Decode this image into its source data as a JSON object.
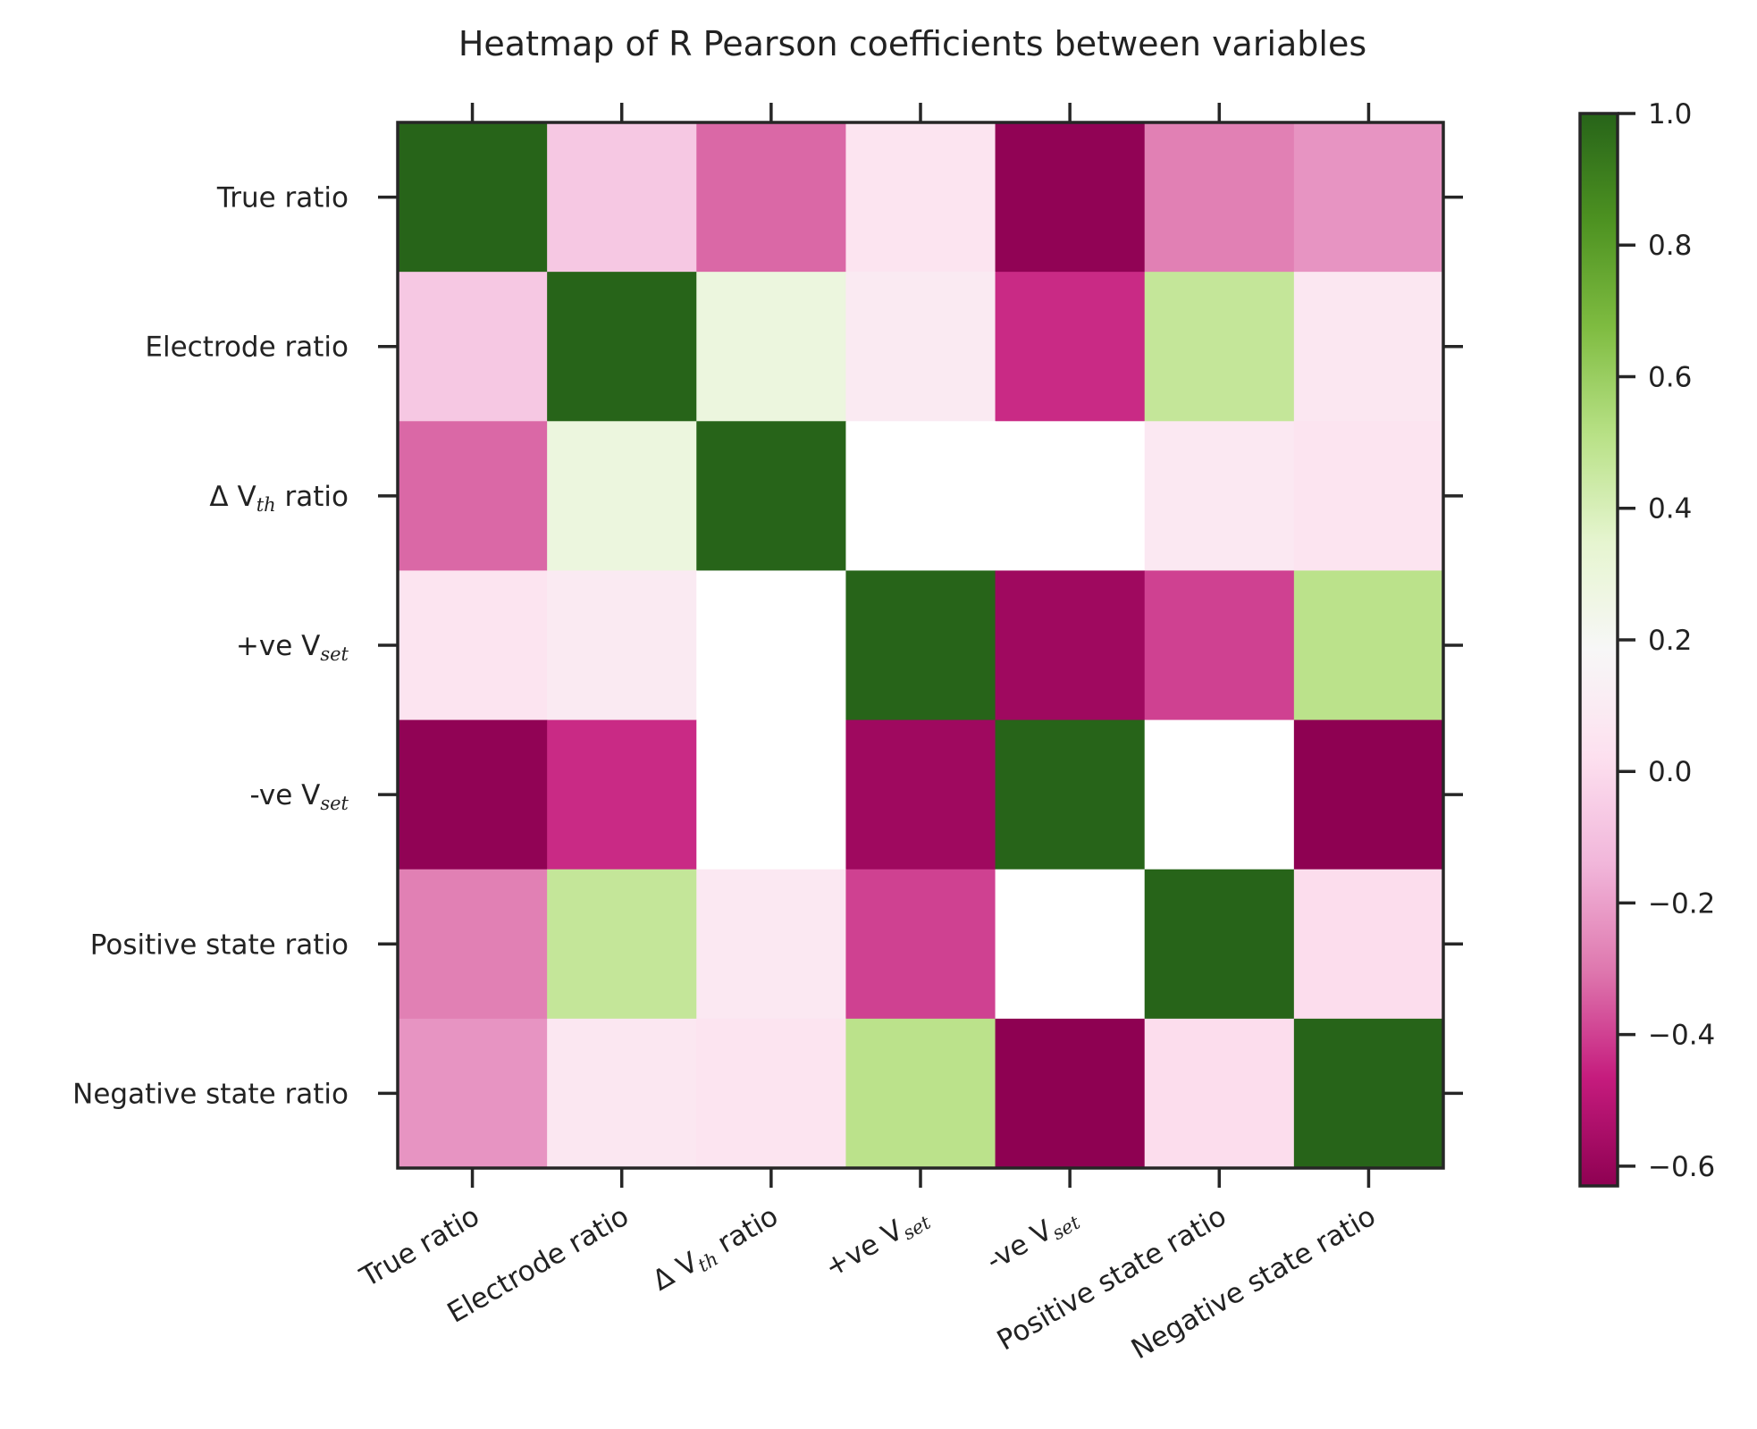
{
  "chart_data": {
    "type": "heatmap",
    "title": "Heatmap of R Pearson coefficients between variables",
    "labels": [
      {
        "id": "true_ratio",
        "main": "True ratio",
        "sub": "",
        "suffix": ""
      },
      {
        "id": "electrode_ratio",
        "main": "Electrode ratio",
        "sub": "",
        "suffix": ""
      },
      {
        "id": "delta_vth_ratio",
        "main": "Δ V",
        "sub": "th",
        "suffix": " ratio"
      },
      {
        "id": "pos_vset",
        "main": "+ve V",
        "sub": "set",
        "suffix": ""
      },
      {
        "id": "neg_vset",
        "main": "-ve V",
        "sub": "set",
        "suffix": ""
      },
      {
        "id": "positive_state_ratio",
        "main": "Positive state ratio",
        "sub": "",
        "suffix": ""
      },
      {
        "id": "negative_state_ratio",
        "main": "Negative state ratio",
        "sub": "",
        "suffix": ""
      }
    ],
    "matrix": [
      [
        1.0,
        -0.07,
        -0.33,
        0.05,
        -0.62,
        -0.28,
        -0.23
      ],
      [
        -0.07,
        1.0,
        0.29,
        0.09,
        -0.44,
        0.47,
        0.07
      ],
      [
        -0.33,
        0.29,
        1.0,
        null,
        null,
        0.08,
        0.05
      ],
      [
        0.05,
        0.09,
        null,
        1.0,
        -0.58,
        -0.4,
        0.5
      ],
      [
        -0.62,
        -0.44,
        null,
        -0.58,
        1.0,
        null,
        -0.65
      ],
      [
        -0.28,
        0.47,
        0.08,
        -0.4,
        null,
        1.0,
        0.01
      ],
      [
        -0.23,
        0.07,
        0.05,
        0.5,
        -0.65,
        0.01,
        1.0
      ]
    ],
    "colorbar": {
      "colormap": "PiYG",
      "vmin": -0.63,
      "vmax": 1.0,
      "ticks": [
        1.0,
        0.8,
        0.6,
        0.4,
        0.2,
        0.0,
        -0.2,
        -0.4,
        -0.6
      ],
      "tick_labels": [
        "1.0",
        "0.8",
        "0.6",
        "0.4",
        "0.2",
        "0.0",
        "−0.2",
        "−0.4",
        "−0.6"
      ]
    },
    "grid": false,
    "legend": "colorbar right"
  }
}
